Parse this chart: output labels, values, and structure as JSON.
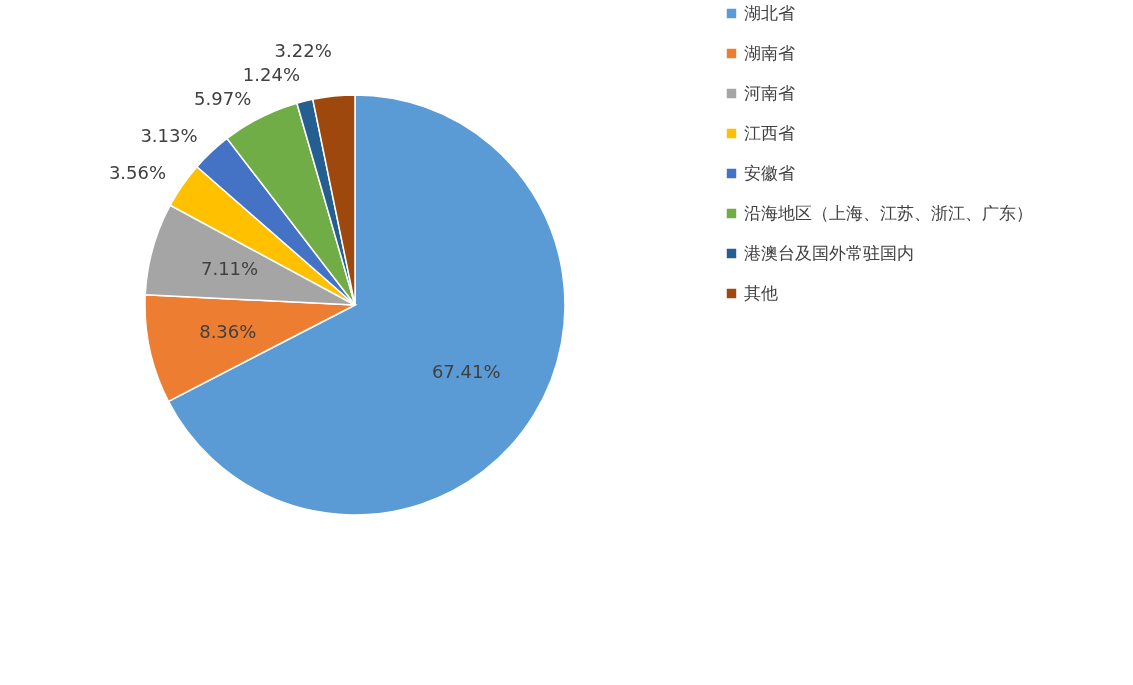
{
  "chart_data": {
    "type": "pie",
    "categories": [
      "湖北省",
      "湖南省",
      "河南省",
      "江西省",
      "安徽省",
      "沿海地区（上海、江苏、浙江、广东）",
      "港澳台及国外常驻国内",
      "其他"
    ],
    "values": [
      67.41,
      8.36,
      7.11,
      3.56,
      3.13,
      5.97,
      1.24,
      3.22
    ],
    "colors": [
      "#5b9bd5",
      "#ed7d31",
      "#a5a5a5",
      "#ffc000",
      "#4472c4",
      "#70ad47",
      "#255e91",
      "#9e480e"
    ],
    "value_labels": [
      "67.41%",
      "8.36%",
      "7.11%",
      "3.56%",
      "3.13%",
      "5.97%",
      "1.24%",
      "3.22%"
    ],
    "legend": "right"
  }
}
